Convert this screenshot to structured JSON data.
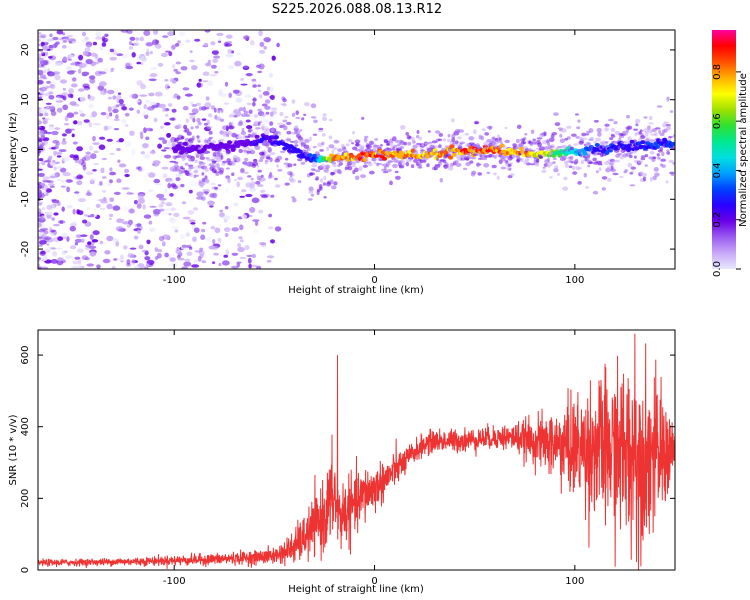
{
  "title": "S225.2026.088.08.13.R12",
  "colors": {
    "snr_line": "#ee3333",
    "axis": "#000000",
    "colormap": [
      "#e8e8ff",
      "#c8a8f8",
      "#9a5cf0",
      "#6a00e8",
      "#2a00ff",
      "#0040ff",
      "#00a0ff",
      "#00e0e0",
      "#00e890",
      "#30e030",
      "#a0e000",
      "#ffff00",
      "#ffb000",
      "#ff5000",
      "#ff0000",
      "#ff00a0"
    ]
  },
  "chart_data": [
    {
      "type": "heatmap",
      "title": "S225.2026.088.08.13.R12",
      "xlabel": "Height of straight line (km)",
      "ylabel": "Frequency (Hz)",
      "xlim": [
        -168,
        150
      ],
      "ylim": [
        -24,
        24
      ],
      "x_ticks": [
        -100,
        0,
        100
      ],
      "y_ticks": [
        -20,
        -10,
        0,
        10,
        20
      ],
      "colorbar": {
        "label": "Normalized spectral amplitude",
        "range": [
          0,
          0.97
        ],
        "ticks": [
          0.0,
          0.2,
          0.4,
          0.6,
          0.8
        ]
      },
      "description_points": [
        {
          "x": -90,
          "y": 0,
          "amplitude": 0.2
        },
        {
          "x": -50,
          "y": 2,
          "amplitude": 0.25
        },
        {
          "x": -30,
          "y": -2,
          "amplitude": 0.3
        },
        {
          "x": -20,
          "y": -2,
          "amplitude": 0.85
        },
        {
          "x": 0,
          "y": -1,
          "amplitude": 0.9
        },
        {
          "x": 25,
          "y": -1,
          "amplitude": 0.85
        },
        {
          "x": 55,
          "y": 0,
          "amplitude": 0.9
        },
        {
          "x": 80,
          "y": -1,
          "amplitude": 0.8
        },
        {
          "x": 110,
          "y": 0,
          "amplitude": 0.3
        },
        {
          "x": 145,
          "y": 1,
          "amplitude": 0.3
        }
      ]
    },
    {
      "type": "line",
      "xlabel": "Height of straight line (km)",
      "ylabel": "SNR (10 * v/v)",
      "xlim": [
        -168,
        150
      ],
      "ylim": [
        0,
        670
      ],
      "x_ticks": [
        -100,
        0,
        100
      ],
      "y_ticks": [
        0,
        200,
        400,
        600
      ],
      "series": [
        {
          "name": "SNR",
          "x": [
            -168,
            -140,
            -110,
            -80,
            -60,
            -50,
            -45,
            -40,
            -35,
            -30,
            -25,
            -22,
            -20,
            -18,
            -15,
            -10,
            -5,
            0,
            5,
            10,
            15,
            20,
            25,
            30,
            40,
            50,
            60,
            70,
            80,
            90,
            100,
            110,
            120,
            130,
            140,
            150
          ],
          "values": [
            20,
            22,
            25,
            30,
            35,
            40,
            50,
            65,
            90,
            120,
            150,
            190,
            210,
            150,
            160,
            180,
            210,
            230,
            250,
            280,
            300,
            330,
            350,
            360,
            360,
            365,
            370,
            370,
            360,
            350,
            340,
            340,
            330,
            320,
            320,
            330
          ],
          "noise_amplitude": [
            6,
            6,
            8,
            10,
            12,
            15,
            20,
            30,
            40,
            50,
            60,
            80,
            80,
            60,
            60,
            50,
            50,
            40,
            35,
            30,
            25,
            20,
            20,
            20,
            20,
            20,
            20,
            25,
            40,
            60,
            90,
            120,
            140,
            160,
            130,
            60
          ],
          "spikes": [
            {
              "x": -18.5,
              "value": 600
            },
            {
              "x": 130,
              "value": 660
            }
          ]
        }
      ]
    }
  ]
}
